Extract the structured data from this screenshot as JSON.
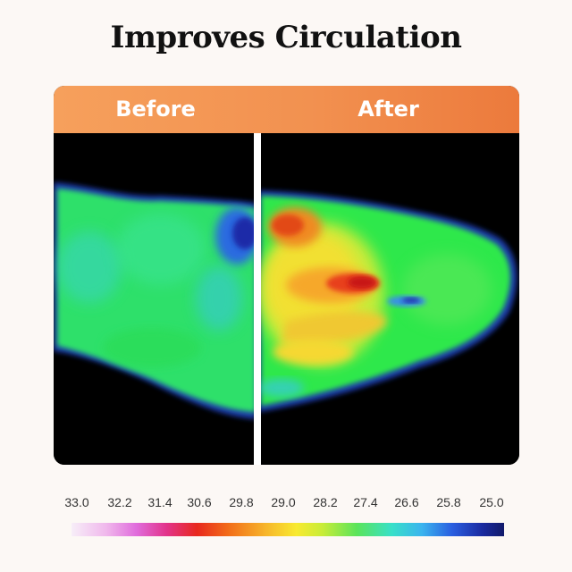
{
  "title": "Improves Circulation",
  "panels": {
    "before_label": "Before",
    "after_label": "After"
  },
  "temperature_scale": [
    "33.0",
    "32.2",
    "31.4",
    "30.6",
    "29.8",
    "29.0",
    "28.2",
    "27.4",
    "26.6",
    "25.8",
    "25.0"
  ],
  "colors": {
    "header_start": "#f6a05c",
    "header_end": "#ec7a3c",
    "background": "#fcf8f5",
    "divider": "#ffffff"
  }
}
